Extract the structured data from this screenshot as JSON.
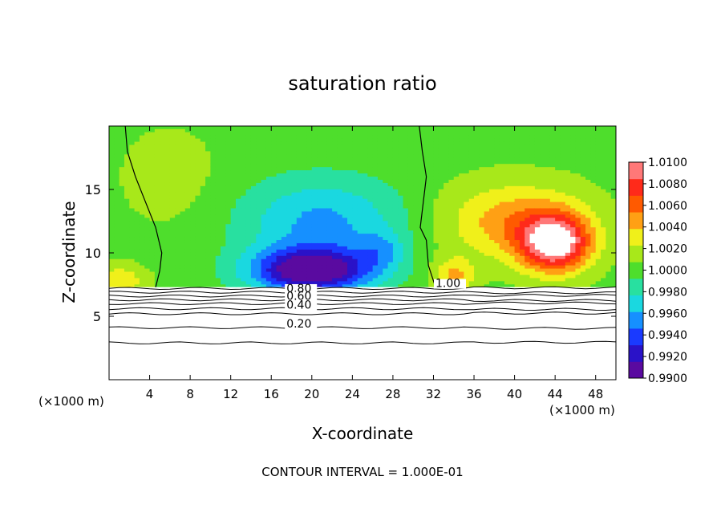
{
  "chart_data": {
    "type": "heatmap",
    "title": "saturation ratio",
    "xlabel": "X-coordinate",
    "ylabel": "Z-coordinate",
    "x_unit_left": "(×1000 m)",
    "x_unit_right": "(×1000 m)",
    "footer": "CONTOUR INTERVAL = 1.000E-01",
    "xlim": [
      0,
      50
    ],
    "ylim": [
      0,
      20
    ],
    "x_ticks": [
      4,
      8,
      12,
      16,
      20,
      24,
      28,
      32,
      36,
      40,
      44,
      48
    ],
    "x_tick_labels": [
      "4",
      "8",
      "12",
      "16",
      "20",
      "24",
      "28",
      "32",
      "36",
      "40",
      "44",
      "48"
    ],
    "y_ticks": [
      5,
      10,
      15
    ],
    "y_tick_labels": [
      "5",
      "10",
      "15"
    ],
    "colorbar": {
      "min": 0.99,
      "max": 1.01,
      "tick_values": [
        0.99,
        0.992,
        0.994,
        0.996,
        0.998,
        1.0,
        1.002,
        1.004,
        1.006,
        1.008,
        1.01
      ],
      "tick_labels": [
        "0.9900",
        "0.9920",
        "0.9940",
        "0.9960",
        "0.9980",
        "1.0000",
        "1.0020",
        "1.0040",
        "1.0060",
        "1.0080",
        "1.0100"
      ],
      "colors": [
        "#5a0aa0",
        "#2a12c8",
        "#1a3aff",
        "#1690ff",
        "#1ad8e0",
        "#28e0a0",
        "#4ede2c",
        "#a8e81a",
        "#f0f01a",
        "#ffa014",
        "#ff5a00",
        "#ff2a1a",
        "#ff7878"
      ]
    },
    "contour_labels": [
      {
        "text": "1.00",
        "x": 32.2,
        "z": 7.3
      },
      {
        "text": "0.80",
        "x": 17.5,
        "z": 6.9
      },
      {
        "text": "0.60",
        "x": 17.5,
        "z": 6.3
      },
      {
        "text": "0.40",
        "x": 17.5,
        "z": 5.6
      },
      {
        "text": "0.20",
        "x": 17.5,
        "z": 4.1
      }
    ],
    "contour_levels_below": [
      0.2,
      0.4,
      0.6,
      0.8,
      1.0
    ],
    "notes": "Field shown above z≈7.3 (saturated layer below); min ≈0.990 near x=16–24, max ≈1.010 near x=44"
  }
}
